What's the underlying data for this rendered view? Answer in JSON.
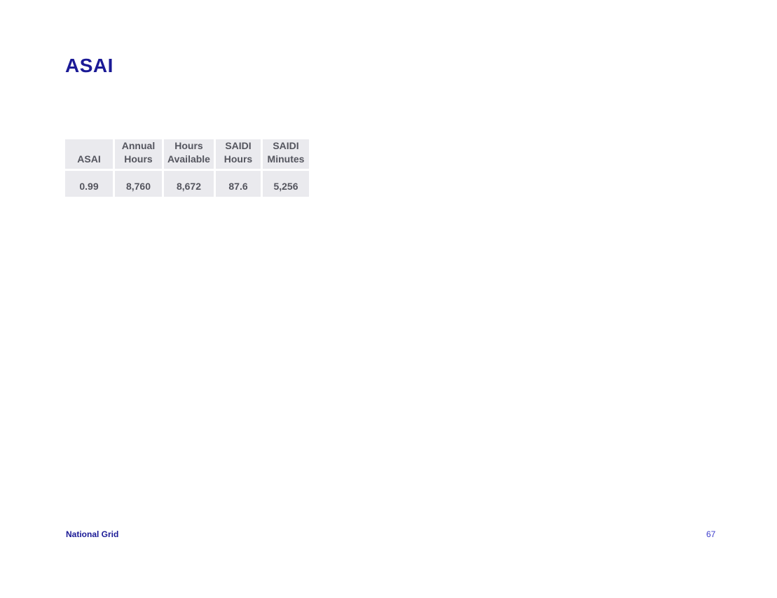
{
  "page": {
    "title": "ASAI",
    "footer": {
      "brand": "National Grid",
      "page_number": "67"
    }
  },
  "table": {
    "headers": [
      "ASAI",
      "Annual\nHours",
      "Hours\nAvailable",
      "SAIDI\nHours",
      "SAIDI\nMinutes"
    ],
    "rows": [
      [
        "0.99",
        "8,760",
        "8,672",
        "87.6",
        "5,256"
      ]
    ]
  },
  "colors": {
    "title_navy": "#1b1a96",
    "brand_navy": "#1b1a96",
    "page_number_blue": "#3d3dcc",
    "table_text": "#54555e",
    "table_cell_bg": "#eaeaee",
    "page_bg": "#ffffff"
  }
}
